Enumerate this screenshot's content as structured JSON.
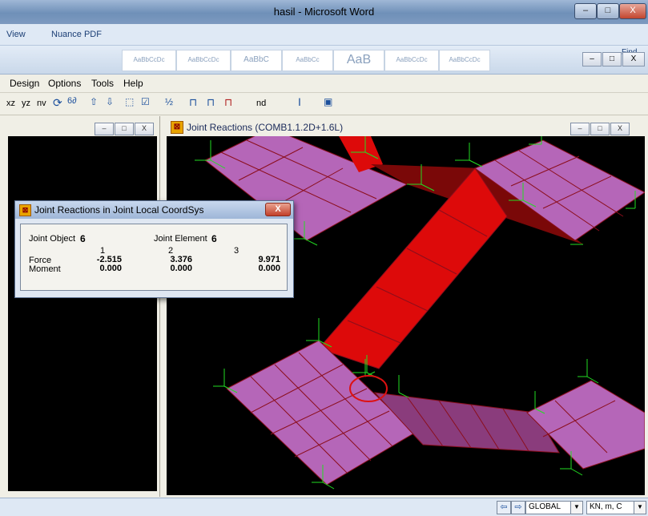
{
  "word": {
    "title": "hasil - Microsoft Word",
    "menu_tabs": [
      "View",
      "Nuance PDF"
    ],
    "style_tiles": [
      "AaBbCcDc",
      "AaBbCcDc",
      "AaBbC",
      "AaBbCc",
      "AaB",
      "AaBbCcDc",
      "AaBbCcDc"
    ],
    "find_label": "Find",
    "window_buttons": [
      "–",
      "□",
      "X"
    ]
  },
  "sap": {
    "menu": [
      "Design",
      "Options",
      "Tools",
      "Help"
    ],
    "toolbar": [
      "xz",
      "yz",
      "nv",
      "nd"
    ],
    "window_buttons": [
      "–",
      "□",
      "X"
    ]
  },
  "right_panel": {
    "title": "Joint Reactions  (COMB1.1.2D+1.6L)"
  },
  "dialog": {
    "title": "Joint Reactions in Joint Local CoordSys",
    "close": "X",
    "joint_object_label": "Joint Object",
    "joint_object_value": "6",
    "joint_element_label": "Joint Element",
    "joint_element_value": "6",
    "columns": [
      "1",
      "2",
      "3"
    ],
    "rows": [
      {
        "label": "Force",
        "values": [
          "-2.515",
          "3.376",
          "9.971"
        ]
      },
      {
        "label": "Moment",
        "values": [
          "0.000",
          "0.000",
          "0.000"
        ]
      }
    ]
  },
  "status": {
    "coord_system": "GLOBAL",
    "units": "KN, m, C"
  },
  "colors": {
    "slab": "#b566b8",
    "beam": "#dd0a0a",
    "dark_beam": "#7a0808",
    "gridline": "#8b0e1c",
    "reaction": "#22dd22",
    "highlight": "#dd1111"
  }
}
